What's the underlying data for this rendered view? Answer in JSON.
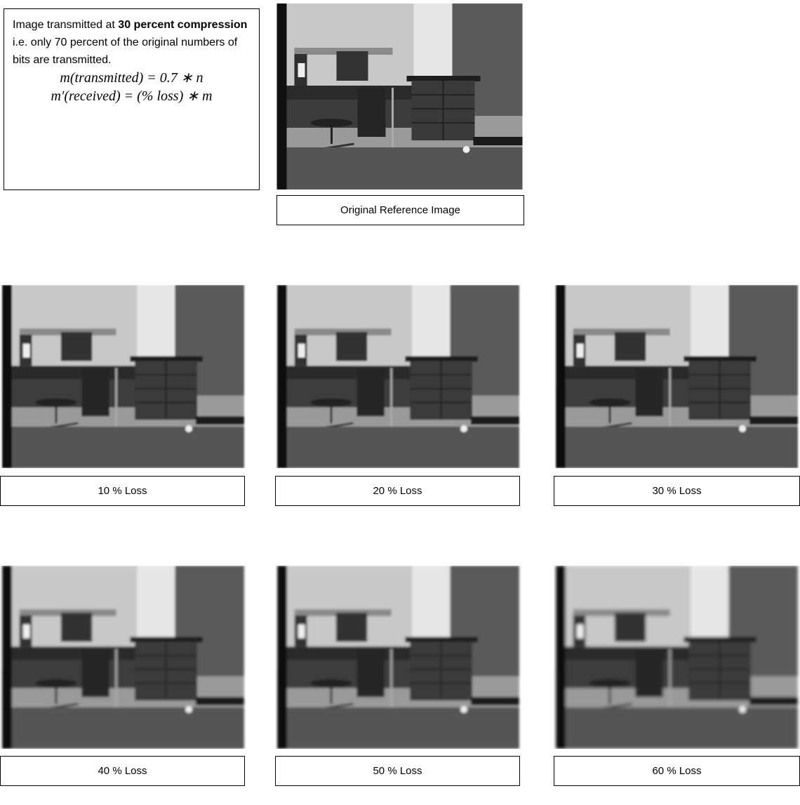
{
  "intro": {
    "text_before": "Image transmitted at ",
    "bold": "30 percent compression",
    "text_after": " i.e. only 70 percent of the original numbers of bits are transmitted."
  },
  "equations": [
    "m(transmitted) = 0.7 ∗ n",
    "m′(received) = (% loss) ∗ m"
  ],
  "reference_caption": "Original Reference Image",
  "panels": [
    {
      "caption": "10 % Loss"
    },
    {
      "caption": "20 % Loss"
    },
    {
      "caption": "30 % Loss"
    },
    {
      "caption": "40 % Loss"
    },
    {
      "caption": "50 % Loss"
    },
    {
      "caption": "60 % Loss"
    }
  ]
}
